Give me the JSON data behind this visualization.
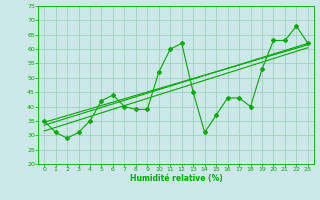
{
  "xlabel": "Humidité relative (%)",
  "ylabel": "",
  "bg_color": "#cce8e8",
  "grid_color": "#99ccbb",
  "line_color": "#00aa00",
  "xlim": [
    -0.5,
    23.5
  ],
  "ylim": [
    20,
    75
  ],
  "xticks": [
    0,
    1,
    2,
    3,
    4,
    5,
    6,
    7,
    8,
    9,
    10,
    11,
    12,
    13,
    14,
    15,
    16,
    17,
    18,
    19,
    20,
    21,
    22,
    23
  ],
  "yticks": [
    20,
    25,
    30,
    35,
    40,
    45,
    50,
    55,
    60,
    65,
    70,
    75
  ],
  "main_x": [
    0,
    1,
    2,
    3,
    4,
    5,
    6,
    7,
    8,
    9,
    10,
    11,
    12,
    13,
    14,
    15,
    16,
    17,
    18,
    19,
    20,
    21,
    22,
    23
  ],
  "main_y": [
    35,
    31,
    29,
    31,
    35,
    42,
    44,
    40,
    39,
    39,
    52,
    60,
    62,
    45,
    31,
    37,
    43,
    43,
    40,
    53,
    63,
    63,
    68,
    62
  ],
  "trend1_x": [
    0,
    23
  ],
  "trend1_y": [
    33.5,
    62
  ],
  "trend2_x": [
    0,
    23
  ],
  "trend2_y": [
    31.5,
    60.5
  ],
  "trend3_x": [
    0,
    23
  ],
  "trend3_y": [
    34.5,
    61.5
  ]
}
